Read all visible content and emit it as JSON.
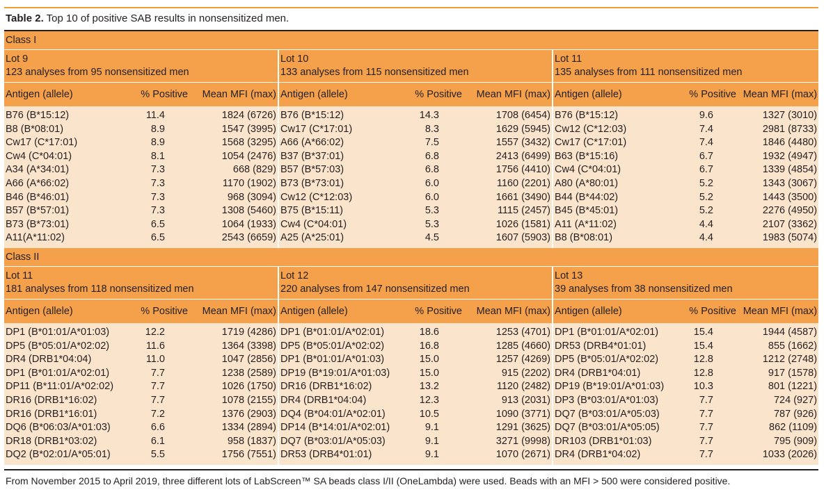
{
  "caption": {
    "label": "Table 2.",
    "text": " Top 10 of positive SAB results in nonsensitized men."
  },
  "columns": {
    "antigen": "Antigen (allele)",
    "positive": "% Positive",
    "mfi": "Mean MFI (max)"
  },
  "class1": {
    "label": "Class I",
    "lots": [
      {
        "title": "Lot 9",
        "subtitle": "123 analyses from 95 nonsensitized men"
      },
      {
        "title": "Lot 10",
        "subtitle": "133 analyses from 115 nonsensitized men"
      },
      {
        "title": "Lot 11",
        "subtitle": "135 analyses from 111 nonsensitized men"
      }
    ],
    "rows": [
      [
        [
          "B76 (B*15:12)",
          "11.4",
          "1824 (6726)"
        ],
        [
          "B76 (B*15:12)",
          "14.3",
          "1708 (6454)"
        ],
        [
          "B76 (B*15:12)",
          "9.6",
          "1327 (3010)"
        ]
      ],
      [
        [
          "B8 (B*08:01)",
          "8.9",
          "1547 (3995)"
        ],
        [
          "Cw17 (C*17:01)",
          "8.3",
          "1629 (5945)"
        ],
        [
          "Cw12 (C*12:03)",
          "7.4",
          "2981 (8733)"
        ]
      ],
      [
        [
          "Cw17 (C*17:01)",
          "8.9",
          "1568 (3295)"
        ],
        [
          "A66 (A*66:02)",
          "7.5",
          "1557 (3432)"
        ],
        [
          "Cw17 (C*17:01)",
          "7.4",
          "1846 (4480)"
        ]
      ],
      [
        [
          "Cw4 (C*04:01)",
          "8.1",
          "1054 (2476)"
        ],
        [
          "B37 (B*37:01)",
          "6.8",
          "2413 (6499)"
        ],
        [
          "B63 (B*15:16)",
          "6.7",
          "1932 (4947)"
        ]
      ],
      [
        [
          "A34 (A*34:01)",
          "7.3",
          "668 (829)"
        ],
        [
          "B57 (B*57:03)",
          "6.8",
          "1756 (4410)"
        ],
        [
          "Cw4 (C*04:01)",
          "6.7",
          "1339 (4854)"
        ]
      ],
      [
        [
          "A66 (A*66:02)",
          "7.3",
          "1170 (1902)"
        ],
        [
          "B73 (B*73:01)",
          "6.0",
          "1160 (2201)"
        ],
        [
          "A80 (A*80:01)",
          "5.2",
          "1343 (3067)"
        ]
      ],
      [
        [
          "B46 (B*46:01)",
          "7.3",
          "968 (3094)"
        ],
        [
          "Cw12 (C*12:03)",
          "6.0",
          "1661 (3490)"
        ],
        [
          "B44 (B*44:02)",
          "5.2",
          "1443 (3500)"
        ]
      ],
      [
        [
          "B57 (B*57:01)",
          "7.3",
          "1308 (5460)"
        ],
        [
          "B75 (B*15:11)",
          "5.3",
          "1115 (2457)"
        ],
        [
          "B45 (B*45:01)",
          "5.2",
          "2276 (4950)"
        ]
      ],
      [
        [
          "B73 (B*73:01)",
          "6.5",
          "1064 (1933)"
        ],
        [
          "Cw4 (C*04:01)",
          "5.3",
          "1026 (1581)"
        ],
        [
          "A11 (A*11:02)",
          "4.4",
          "2107 (3362)"
        ]
      ],
      [
        [
          "A11(A*11:02)",
          "6.5",
          "2543 (6659)"
        ],
        [
          "A25 (A*25:01)",
          "4.5",
          "1607 (5903)"
        ],
        [
          "B8 (B*08:01)",
          "4.4",
          "1983 (5074)"
        ]
      ]
    ]
  },
  "class2": {
    "label": "Class II",
    "lots": [
      {
        "title": "Lot 11",
        "subtitle": "181 analyses from 118 nonsensitized men"
      },
      {
        "title": "Lot 12",
        "subtitle": "220 analyses from 147 nonsensitized men"
      },
      {
        "title": "Lot 13",
        "subtitle": "39 analyses from 38 nonsensitized men"
      }
    ],
    "rows": [
      [
        [
          "DP1 (B*01:01/A*01:03)",
          "12.2",
          "1719 (4286)"
        ],
        [
          "DP1 (B*01:01/A*02:01)",
          "18.6",
          "1253 (4701)"
        ],
        [
          "DP1 (B*01:01/A*02:01)",
          "15.4",
          "1944 (4587)"
        ]
      ],
      [
        [
          "DP5 (B*05:01/A*02:02)",
          "11.6",
          "1364 (3398)"
        ],
        [
          "DP5 (B*05:01/A*02:02)",
          "16.8",
          "1285 (4660)"
        ],
        [
          "DR53 (DRB4*01:01)",
          "15.4",
          "855 (1662)"
        ]
      ],
      [
        [
          "DR4 (DRB1*04:04)",
          "11.0",
          "1047 (2856)"
        ],
        [
          "DP1 (B*01:01/A*01:03)",
          "15.0",
          "1257 (4269)"
        ],
        [
          "DP5 (B*05:01/A*02:02)",
          "12.8",
          "1212 (2748)"
        ]
      ],
      [
        [
          "DP1 (B*01:01/A*02:01)",
          "7.7",
          "1238 (2589)"
        ],
        [
          "DP19 (B*19:01/A*01:03)",
          "15.0",
          "915 (2202)"
        ],
        [
          "DR4 (DRB1*04:01)",
          "12.8",
          "917 (1578)"
        ]
      ],
      [
        [
          "DP11 (B*11:01/A*02:02)",
          "7.7",
          "1026 (1750)"
        ],
        [
          "DR16 (DRB1*16:02)",
          "13.2",
          "1120 (2482)"
        ],
        [
          "DP19 (B*19:01/A*01:03)",
          "10.3",
          "801 (1221)"
        ]
      ],
      [
        [
          "DR16 (DRB1*16:02)",
          "7.7",
          "1078 (2155)"
        ],
        [
          "DR4 (DRB1*04:04)",
          "12.3",
          "913 (2031)"
        ],
        [
          "DP3 (B*03:01/A*01:03)",
          "7.7",
          "724 (927)"
        ]
      ],
      [
        [
          "DR16 (DRB1*16:01)",
          "7.2",
          "1376 (2903)"
        ],
        [
          "DQ4 (B*04:01/A*02:01)",
          "10.5",
          "1090 (3771)"
        ],
        [
          "DQ7 (B*03:01/A*05:03)",
          "7.7",
          "787 (926)"
        ]
      ],
      [
        [
          "DQ6 (B*06:03/A*01:03)",
          "6.6",
          "1334 (2894)"
        ],
        [
          "DP14 (B*14:01/A*02:01)",
          "9.1",
          "1291 (3625)"
        ],
        [
          "DQ7 (B*03:01/A*05:05)",
          "7.7",
          "862 (1109)"
        ]
      ],
      [
        [
          "DR18 (DRB1*03:02)",
          "6.1",
          "958 (1837)"
        ],
        [
          "DQ7 (B*03:01/A*05:03)",
          "9.1",
          "3271 (9998)"
        ],
        [
          "DR103 (DRB1*01:03)",
          "7.7",
          "795 (909)"
        ]
      ],
      [
        [
          "DQ2 (B*02:01/A*05:01)",
          "5.5",
          "1756 (7551)"
        ],
        [
          "DR53 (DRB4*01:01)",
          "9.1",
          "1070 (2671)"
        ],
        [
          "DR4 (DRB1*04:02)",
          "7.7",
          "1033 (2026)"
        ]
      ]
    ]
  },
  "footnote": "From November 2015 to April 2019, three different lots of LabScreen™ SA beads class I/II (OneLambda) were used. Beads with an MFI > 500 were considered positive."
}
